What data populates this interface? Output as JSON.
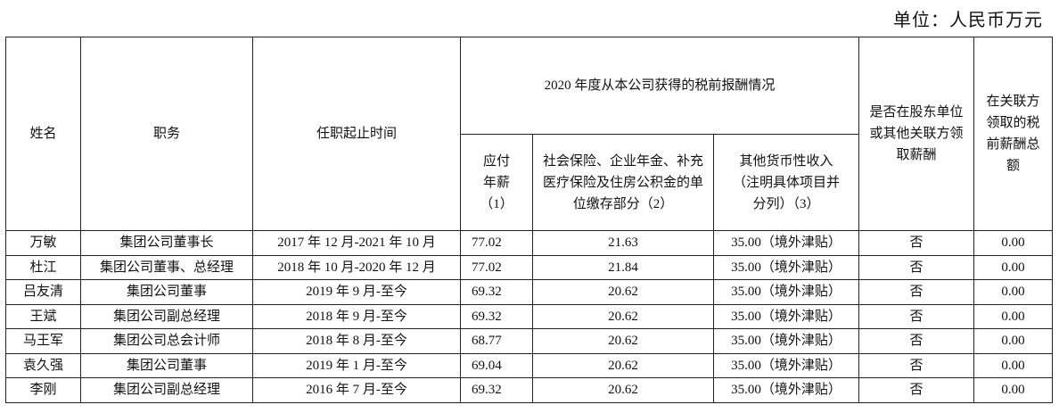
{
  "unit": "单位：人民币万元",
  "table": {
    "header": {
      "name": "姓名",
      "position": "职务",
      "term": "任职起止时间",
      "group": "2020 年度从本公司获得的税前报酬情况",
      "salary": "应付年薪（1）",
      "insurance": "社会保险、企业年金、补充医疗保险及住房公积金的单位缴存部分（2）",
      "other": "其他货币性收入（注明具体项目并分列）（3）",
      "related": "是否在股东单位或其他关联方领取薪酬",
      "related_total": "在关联方领取的税前薪酬总额"
    },
    "rows": [
      [
        "万敏",
        "集团公司董事长",
        "2017 年 12 月-2021 年 10 月",
        "77.02",
        "21.63",
        "35.00（境外津贴）",
        "否",
        "0.00"
      ],
      [
        "杜江",
        "集团公司董事、总经理",
        "2018 年 10 月-2020 年 12 月",
        "77.02",
        "21.84",
        "35.00（境外津贴）",
        "否",
        "0.00"
      ],
      [
        "吕友清",
        "集团公司董事",
        "2019 年 9 月-至今",
        "69.32",
        "20.62",
        "35.00（境外津贴）",
        "否",
        "0.00"
      ],
      [
        "王斌",
        "集团公司副总经理",
        "2018 年 9 月-至今",
        "69.32",
        "20.62",
        "35.00（境外津贴）",
        "否",
        "0.00"
      ],
      [
        "马王军",
        "集团公司总会计师",
        "2018 年 8 月-至今",
        "68.77",
        "20.62",
        "35.00（境外津贴）",
        "否",
        "0.00"
      ],
      [
        "袁久强",
        "集团公司董事",
        "2019 年 1 月-至今",
        "69.04",
        "20.62",
        "35.00（境外津贴）",
        "否",
        "0.00"
      ],
      [
        "李刚",
        "集团公司副总经理",
        "2016 年 7 月-至今",
        "69.32",
        "20.62",
        "35.00（境外津贴）",
        "否",
        "0.00"
      ]
    ]
  }
}
